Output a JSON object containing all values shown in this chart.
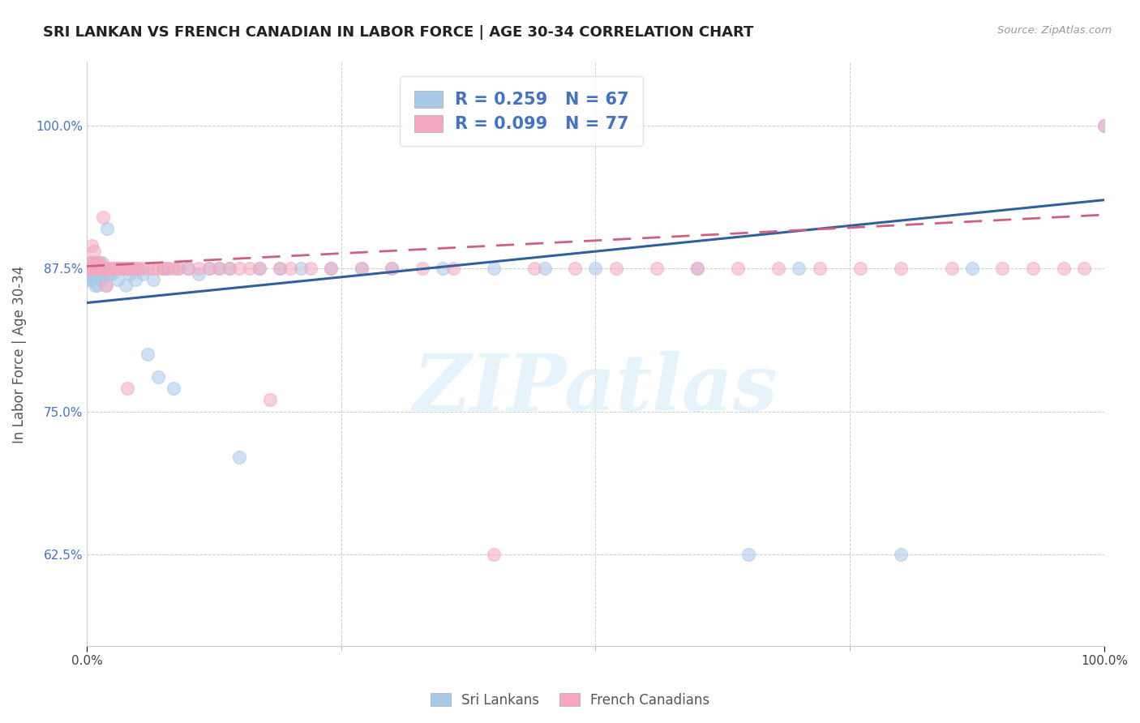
{
  "title": "SRI LANKAN VS FRENCH CANADIAN IN LABOR FORCE | AGE 30-34 CORRELATION CHART",
  "source": "Source: ZipAtlas.com",
  "ylabel": "In Labor Force | Age 30-34",
  "yticks": [
    0.625,
    0.75,
    0.875,
    1.0
  ],
  "ytick_labels": [
    "62.5%",
    "75.0%",
    "87.5%",
    "100.0%"
  ],
  "watermark": "ZIPatlas",
  "sri_color": "#a8c8e8",
  "french_color": "#f4a8c0",
  "sri_line_color": "#3060a0",
  "french_line_color": "#d06080",
  "sri_R": 0.259,
  "sri_N": 67,
  "french_R": 0.099,
  "french_N": 77,
  "xlim": [
    0.0,
    1.0
  ],
  "ylim": [
    0.545,
    1.055
  ],
  "sri_line_x0": 0.0,
  "sri_line_y0": 0.845,
  "sri_line_x1": 1.0,
  "sri_line_y1": 0.935,
  "french_line_x0": 0.0,
  "french_line_y0": 0.877,
  "french_line_x1": 1.0,
  "french_line_y1": 0.922,
  "sri_x": [
    0.0,
    0.0,
    0.0,
    0.003,
    0.003,
    0.005,
    0.005,
    0.007,
    0.008,
    0.008,
    0.009,
    0.01,
    0.01,
    0.01,
    0.012,
    0.013,
    0.014,
    0.015,
    0.016,
    0.017,
    0.018,
    0.019,
    0.02,
    0.02,
    0.022,
    0.023,
    0.025,
    0.027,
    0.03,
    0.032,
    0.035,
    0.038,
    0.04,
    0.042,
    0.045,
    0.048,
    0.05,
    0.055,
    0.06,
    0.065,
    0.07,
    0.075,
    0.08,
    0.085,
    0.09,
    0.1,
    0.11,
    0.12,
    0.13,
    0.14,
    0.15,
    0.17,
    0.19,
    0.21,
    0.24,
    0.27,
    0.3,
    0.35,
    0.4,
    0.45,
    0.5,
    0.6,
    0.65,
    0.7,
    0.8,
    0.87,
    1.0
  ],
  "sri_y": [
    0.875,
    0.87,
    0.865,
    0.875,
    0.87,
    0.88,
    0.865,
    0.875,
    0.88,
    0.86,
    0.87,
    0.875,
    0.87,
    0.86,
    0.875,
    0.87,
    0.865,
    0.88,
    0.87,
    0.875,
    0.86,
    0.875,
    0.91,
    0.875,
    0.87,
    0.875,
    0.87,
    0.875,
    0.865,
    0.875,
    0.875,
    0.86,
    0.875,
    0.87,
    0.875,
    0.865,
    0.875,
    0.87,
    0.8,
    0.865,
    0.78,
    0.875,
    0.875,
    0.77,
    0.875,
    0.875,
    0.87,
    0.875,
    0.875,
    0.875,
    0.71,
    0.875,
    0.875,
    0.875,
    0.875,
    0.875,
    0.875,
    0.875,
    0.875,
    0.875,
    0.875,
    0.875,
    0.625,
    0.875,
    0.625,
    0.875,
    1.0
  ],
  "french_x": [
    0.0,
    0.0,
    0.0,
    0.003,
    0.003,
    0.004,
    0.005,
    0.005,
    0.006,
    0.007,
    0.008,
    0.009,
    0.01,
    0.011,
    0.012,
    0.013,
    0.014,
    0.015,
    0.016,
    0.017,
    0.018,
    0.019,
    0.02,
    0.022,
    0.024,
    0.026,
    0.028,
    0.03,
    0.032,
    0.035,
    0.038,
    0.04,
    0.043,
    0.046,
    0.05,
    0.055,
    0.06,
    0.065,
    0.07,
    0.075,
    0.08,
    0.085,
    0.09,
    0.1,
    0.11,
    0.12,
    0.13,
    0.14,
    0.15,
    0.16,
    0.17,
    0.18,
    0.19,
    0.2,
    0.22,
    0.24,
    0.27,
    0.3,
    0.33,
    0.36,
    0.4,
    0.44,
    0.48,
    0.52,
    0.56,
    0.6,
    0.64,
    0.68,
    0.72,
    0.76,
    0.8,
    0.85,
    0.9,
    0.93,
    0.96,
    0.98,
    1.0
  ],
  "french_y": [
    0.88,
    0.875,
    0.875,
    0.88,
    0.875,
    0.875,
    0.895,
    0.875,
    0.875,
    0.89,
    0.875,
    0.875,
    0.88,
    0.88,
    0.875,
    0.88,
    0.875,
    0.875,
    0.92,
    0.875,
    0.875,
    0.86,
    0.875,
    0.875,
    0.875,
    0.875,
    0.875,
    0.875,
    0.875,
    0.875,
    0.875,
    0.77,
    0.875,
    0.875,
    0.875,
    0.875,
    0.875,
    0.875,
    0.875,
    0.875,
    0.875,
    0.875,
    0.875,
    0.875,
    0.875,
    0.875,
    0.875,
    0.875,
    0.875,
    0.875,
    0.875,
    0.76,
    0.875,
    0.875,
    0.875,
    0.875,
    0.875,
    0.875,
    0.875,
    0.875,
    0.625,
    0.875,
    0.875,
    0.875,
    0.875,
    0.875,
    0.875,
    0.875,
    0.875,
    0.875,
    0.875,
    0.875,
    0.875,
    0.875,
    0.875,
    0.875,
    1.0
  ]
}
